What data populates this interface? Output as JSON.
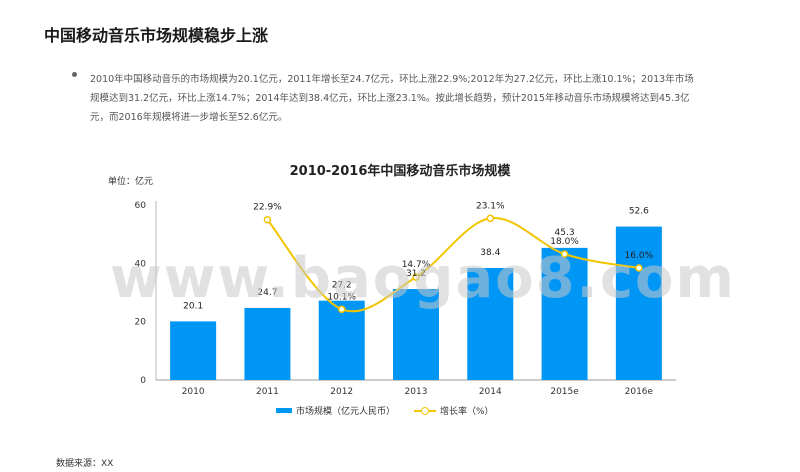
{
  "page": {
    "title": "中国移动音乐市场规模稳步上涨",
    "summary": "2010年中国移动音乐的市场规模为20.1亿元，2011年增长至24.7亿元，环比上涨22.9%;2012年为27.2亿元，环比上涨10.1%；2013年市场规模达到31.2亿元，环比上涨14.7%；2014年达到38.4亿元，环比上涨23.1%。按此增长趋势，预计2015年移动音乐市场规模将达到45.3亿元，而2016年规模将进一步增长至52.6亿元。",
    "source": "数据来源：XX",
    "watermark": "www.baogao8.com"
  },
  "chart_data": {
    "type": "bar",
    "title": "2010-2016年中国移动音乐市场规模",
    "unit_label": "单位：亿元",
    "categories": [
      "2010",
      "2011",
      "2012",
      "2013",
      "2014",
      "2015e",
      "2016e"
    ],
    "ylim": [
      0,
      60
    ],
    "yticks": [
      "0",
      "20",
      "40",
      "60"
    ],
    "series": [
      {
        "name": "市场规模（亿元人民币）",
        "type": "bar",
        "color": "#0096f5",
        "values": [
          20.1,
          24.7,
          27.2,
          31.2,
          38.4,
          45.3,
          52.6
        ],
        "labels": [
          "20.1",
          "24.7",
          "27.2",
          "31.2",
          "38.4",
          "45.3",
          "52.6"
        ]
      },
      {
        "name": "增长率（%）",
        "type": "line",
        "color": "#f2c500",
        "secondary_axis": true,
        "ylim": [
          0,
          25
        ],
        "values": [
          null,
          22.9,
          10.1,
          14.7,
          23.1,
          18.0,
          16.0
        ],
        "labels": [
          "",
          "22.9%",
          "10.1%",
          "14.7%",
          "23.1%",
          "18.0%",
          "16.0%"
        ]
      }
    ],
    "legend_position": "bottom",
    "grid": false
  }
}
